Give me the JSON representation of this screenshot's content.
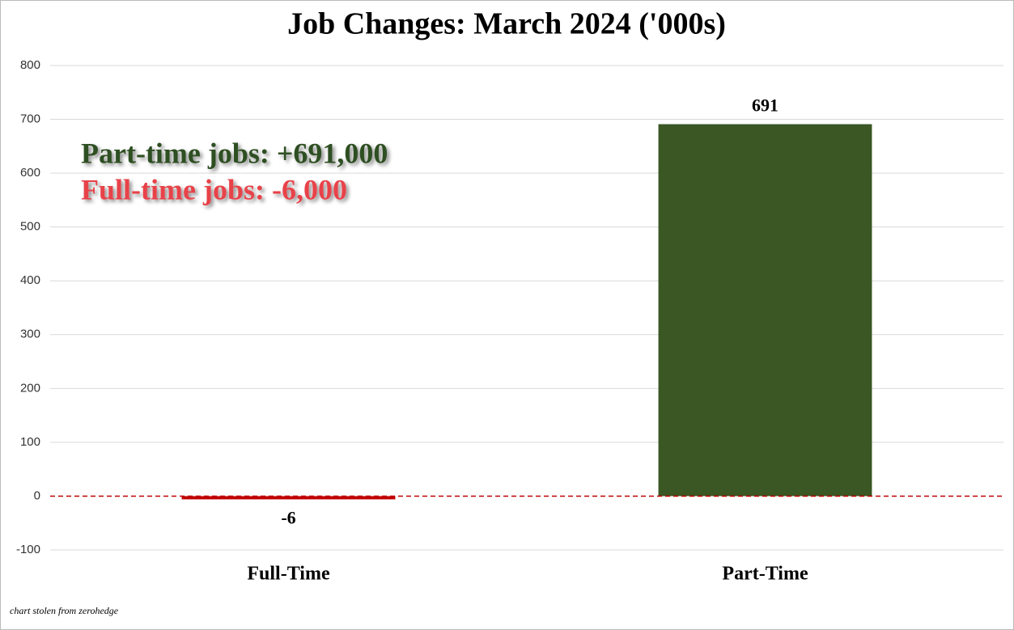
{
  "chart_data": {
    "type": "bar",
    "title": "Job Changes: March 2024 ('000s)",
    "categories": [
      "Full-Time",
      "Part-Time"
    ],
    "values": [
      -6,
      691
    ],
    "colors": [
      "#c00000",
      "#3a5724"
    ],
    "ylim": [
      -100,
      800
    ],
    "yticks": [
      -100,
      0,
      100,
      200,
      300,
      400,
      500,
      600,
      700,
      800
    ],
    "grid": true,
    "annotations": [
      {
        "text": "Part-time jobs: +691,000",
        "color": "#2e4f22"
      },
      {
        "text": "Full-time jobs: -6,000",
        "color": "#e8434a"
      }
    ],
    "footnote": "chart stolen from zerohedge"
  }
}
